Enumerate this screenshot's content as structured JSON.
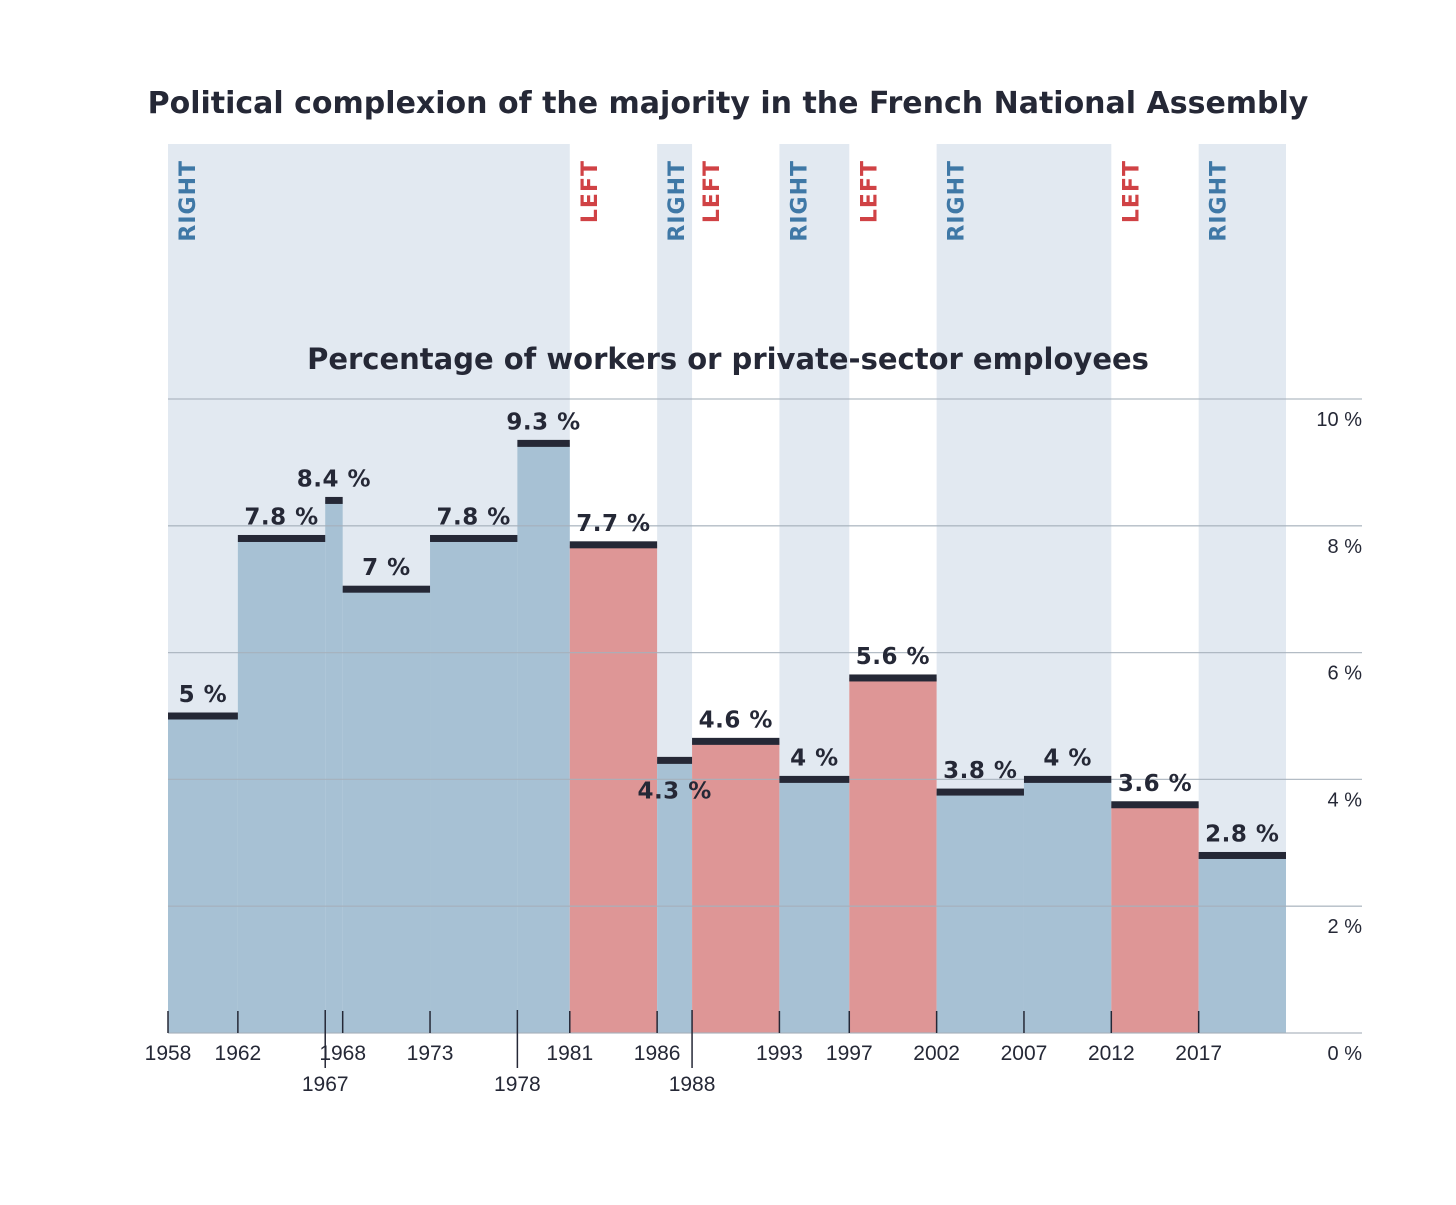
{
  "chart_data": {
    "type": "area",
    "title": "Political complexion of the majority in the French National Assembly",
    "subtitle": "Percentage of workers or private-sector employees",
    "colors": {
      "right_band": "#e2e9f1",
      "right_fill": "#a7c1d4",
      "left_fill": "#de9696",
      "value_bar": "#252836",
      "right_text": "#3f78a6",
      "left_text": "#d04245",
      "gridline": "#a6b0bb"
    },
    "x_domain": [
      1958,
      2022
    ],
    "ylim": [
      0,
      10
    ],
    "y_ticks": [
      {
        "value": 0,
        "label": "0 %"
      },
      {
        "value": 2,
        "label": "2 %"
      },
      {
        "value": 4,
        "label": "4 %"
      },
      {
        "value": 6,
        "label": "6 %"
      },
      {
        "value": 8,
        "label": "8 %"
      },
      {
        "value": 10,
        "label": "10 %"
      }
    ],
    "majority_bands": [
      {
        "label": "RIGHT",
        "party": "right",
        "start": 1958,
        "end": 1981
      },
      {
        "label": "LEFT",
        "party": "left",
        "start": 1981,
        "end": 1986
      },
      {
        "label": "RIGHT",
        "party": "right",
        "start": 1986,
        "end": 1988
      },
      {
        "label": "LEFT",
        "party": "left",
        "start": 1988,
        "end": 1993
      },
      {
        "label": "RIGHT",
        "party": "right",
        "start": 1993,
        "end": 1997
      },
      {
        "label": "LEFT",
        "party": "left",
        "start": 1997,
        "end": 2002
      },
      {
        "label": "RIGHT",
        "party": "right",
        "start": 2002,
        "end": 2012
      },
      {
        "label": "LEFT",
        "party": "left",
        "start": 2012,
        "end": 2017
      },
      {
        "label": "RIGHT",
        "party": "right",
        "start": 2017,
        "end": 2022
      }
    ],
    "legislatures": [
      {
        "start": 1958,
        "end": 1962,
        "value": 5.0,
        "label": "5 %",
        "party": "right",
        "label_pos": "above"
      },
      {
        "start": 1962,
        "end": 1967,
        "value": 7.8,
        "label": "7.8 %",
        "party": "right",
        "label_pos": "above"
      },
      {
        "start": 1967,
        "end": 1968,
        "value": 8.4,
        "label": "8.4 %",
        "party": "right",
        "label_pos": "above"
      },
      {
        "start": 1968,
        "end": 1973,
        "value": 7.0,
        "label": "7 %",
        "party": "right",
        "label_pos": "above"
      },
      {
        "start": 1973,
        "end": 1978,
        "value": 7.8,
        "label": "7.8 %",
        "party": "right",
        "label_pos": "above"
      },
      {
        "start": 1978,
        "end": 1981,
        "value": 9.3,
        "label": "9.3 %",
        "party": "right",
        "label_pos": "above"
      },
      {
        "start": 1981,
        "end": 1986,
        "value": 7.7,
        "label": "7.7 %",
        "party": "left",
        "label_pos": "above"
      },
      {
        "start": 1986,
        "end": 1988,
        "value": 4.3,
        "label": "4.3 %",
        "party": "right",
        "label_pos": "below"
      },
      {
        "start": 1988,
        "end": 1993,
        "value": 4.6,
        "label": "4.6 %",
        "party": "left",
        "label_pos": "above"
      },
      {
        "start": 1993,
        "end": 1997,
        "value": 4.0,
        "label": "4 %",
        "party": "right",
        "label_pos": "above"
      },
      {
        "start": 1997,
        "end": 2002,
        "value": 5.6,
        "label": "5.6 %",
        "party": "left",
        "label_pos": "above"
      },
      {
        "start": 2002,
        "end": 2007,
        "value": 3.8,
        "label": "3.8 %",
        "party": "right",
        "label_pos": "above"
      },
      {
        "start": 2007,
        "end": 2012,
        "value": 4.0,
        "label": "4 %",
        "party": "right",
        "label_pos": "above"
      },
      {
        "start": 2012,
        "end": 2017,
        "value": 3.6,
        "label": "3.6 %",
        "party": "left",
        "label_pos": "above"
      },
      {
        "start": 2017,
        "end": 2022,
        "value": 2.8,
        "label": "2.8 %",
        "party": "right",
        "label_pos": "above"
      }
    ],
    "x_tick_labels": [
      {
        "year": 1958,
        "label": "1958",
        "row": "upper"
      },
      {
        "year": 1962,
        "label": "1962",
        "row": "upper"
      },
      {
        "year": 1967,
        "label": "1967",
        "row": "lower"
      },
      {
        "year": 1968,
        "label": "1968",
        "row": "upper"
      },
      {
        "year": 1973,
        "label": "1973",
        "row": "upper"
      },
      {
        "year": 1978,
        "label": "1978",
        "row": "lower"
      },
      {
        "year": 1981,
        "label": "1981",
        "row": "upper"
      },
      {
        "year": 1986,
        "label": "1986",
        "row": "upper"
      },
      {
        "year": 1988,
        "label": "1988",
        "row": "lower"
      },
      {
        "year": 1993,
        "label": "1993",
        "row": "upper"
      },
      {
        "year": 1997,
        "label": "1997",
        "row": "upper"
      },
      {
        "year": 2002,
        "label": "2002",
        "row": "upper"
      },
      {
        "year": 2007,
        "label": "2007",
        "row": "upper"
      },
      {
        "year": 2012,
        "label": "2012",
        "row": "upper"
      },
      {
        "year": 2017,
        "label": "2017",
        "row": "upper"
      }
    ]
  }
}
